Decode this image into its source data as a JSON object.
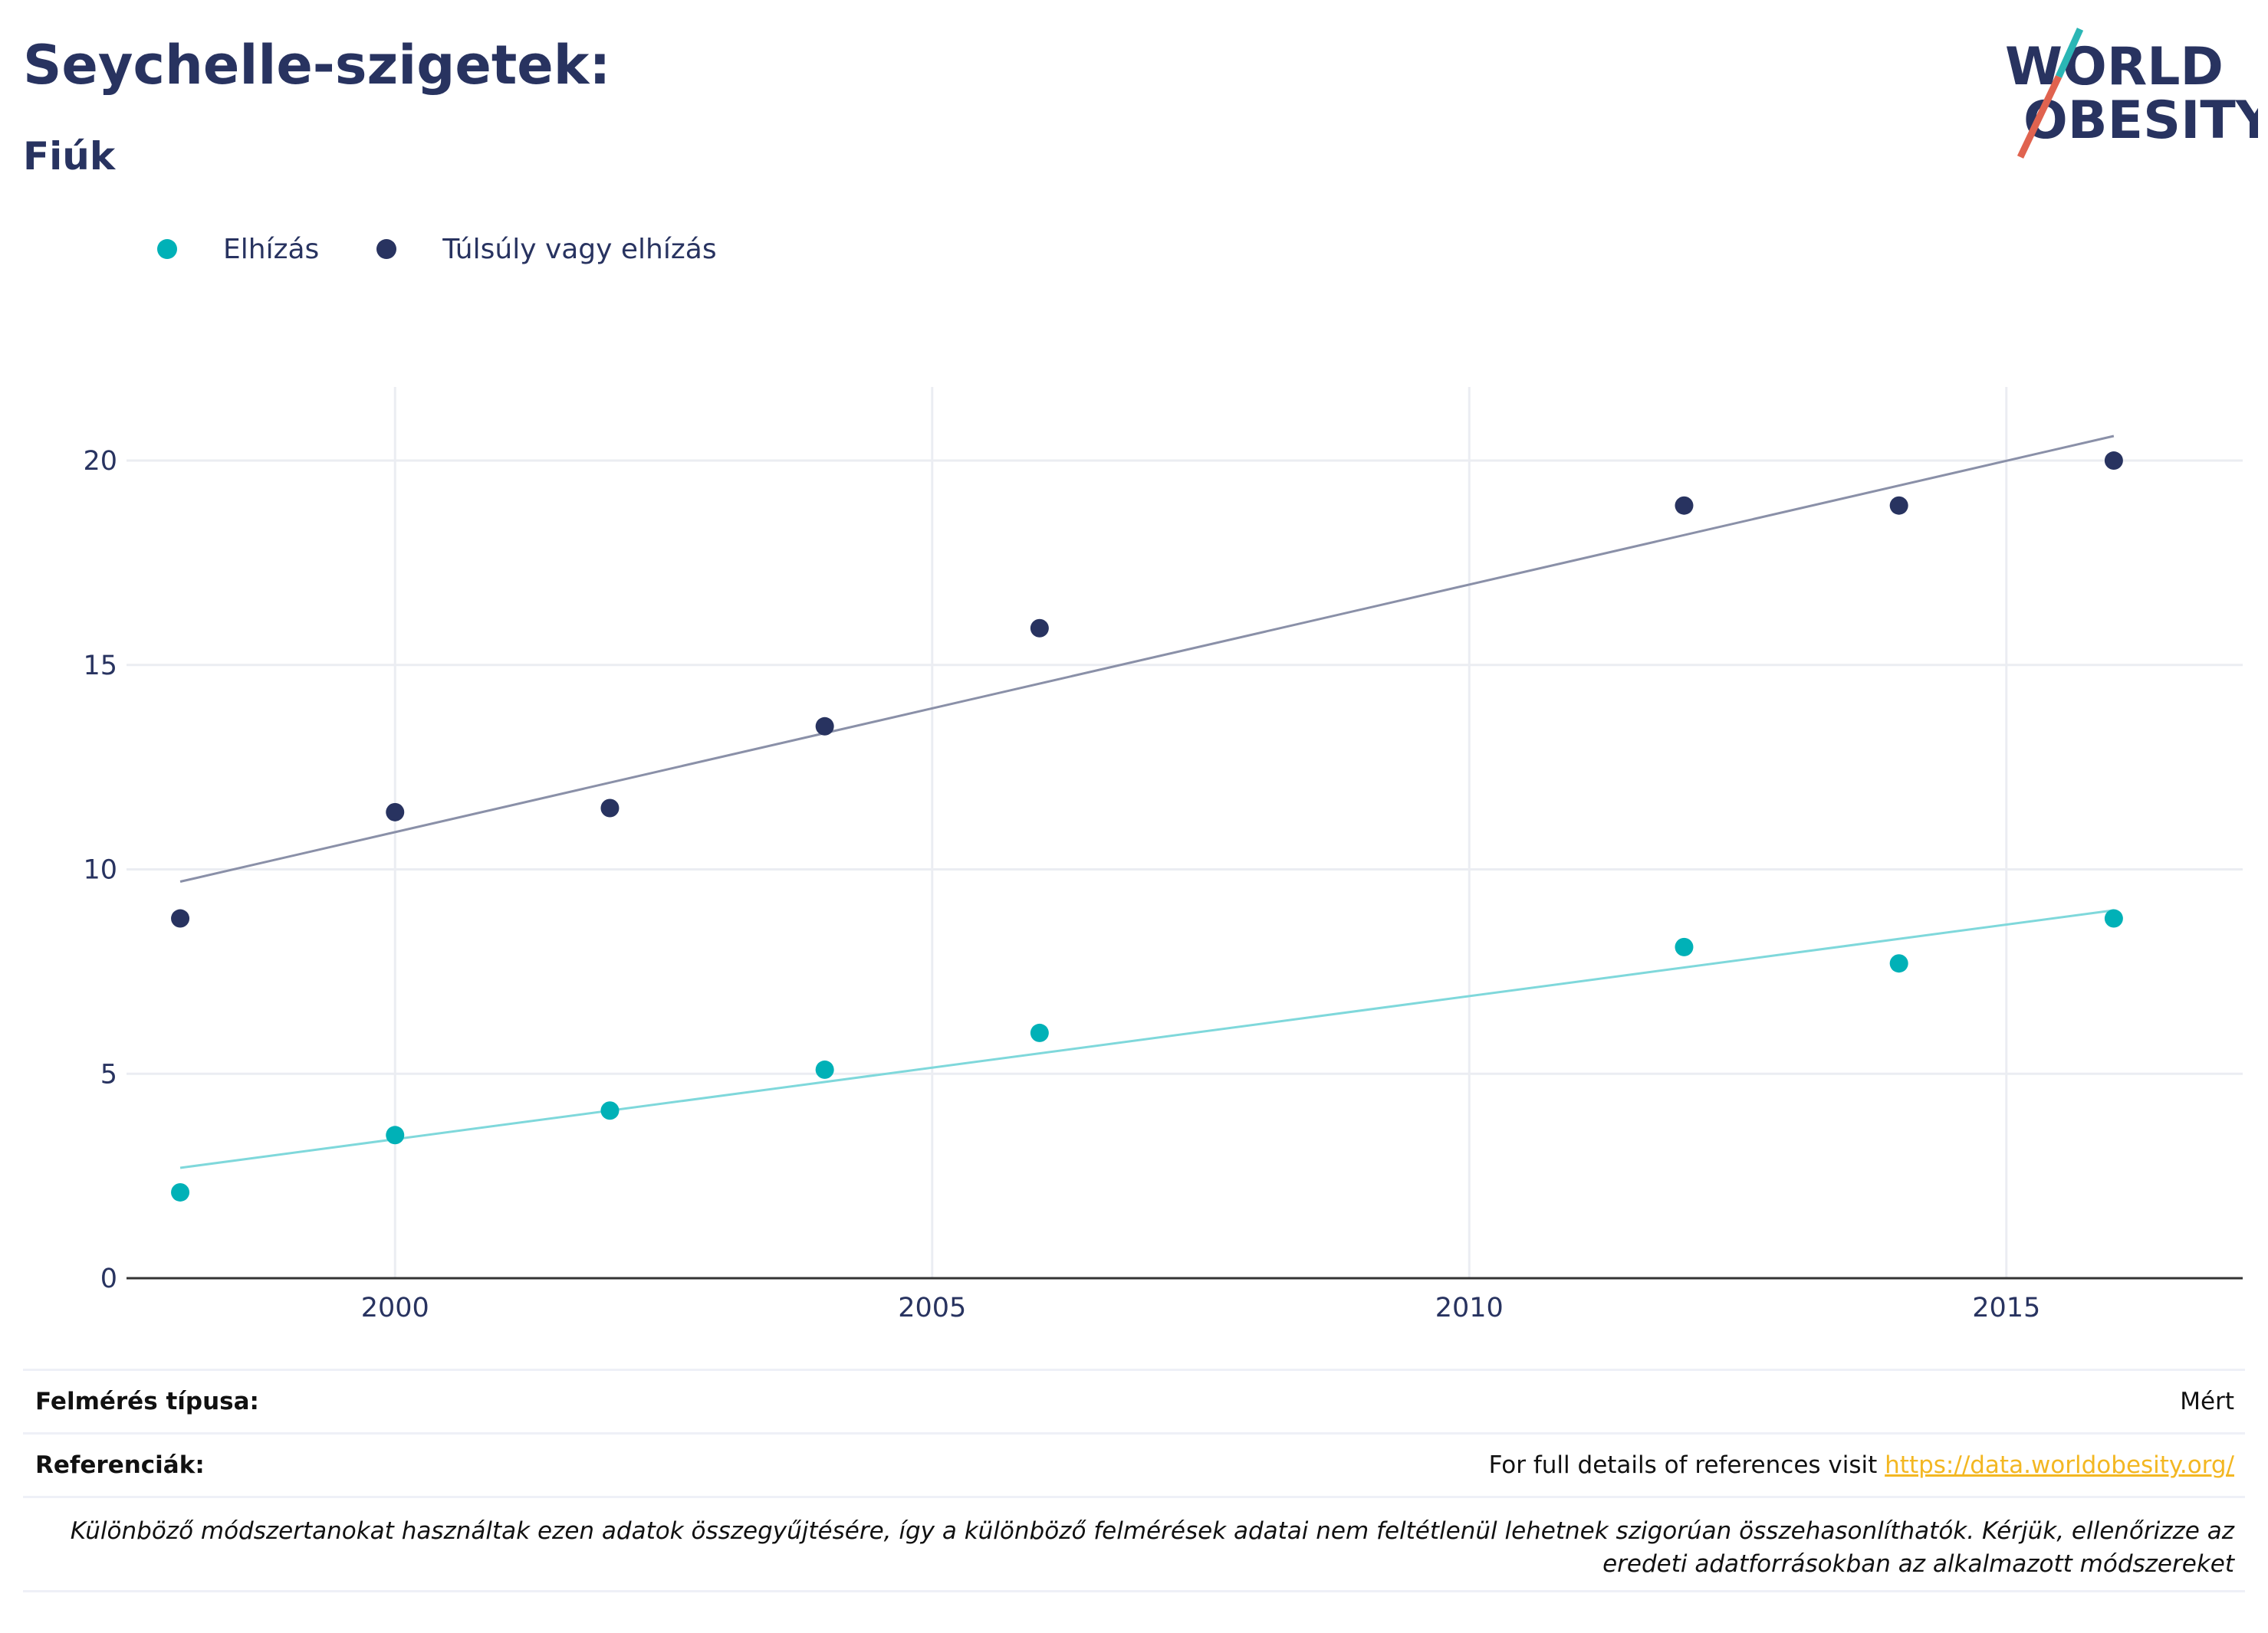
{
  "header": {
    "title": "Seychelle-szigetek:",
    "subtitle": "Fiúk"
  },
  "logo": {
    "line1": "WORLD",
    "line2": "OBESITY",
    "colors": {
      "text": "#283360",
      "teal": "#2ab6b5",
      "coral": "#e0634f"
    }
  },
  "legend": [
    {
      "label": "Elhízás",
      "color": "#00b1b7"
    },
    {
      "label": "Túlsúly vagy elhízás",
      "color": "#283360"
    }
  ],
  "chart_data": {
    "type": "scatter",
    "title": "",
    "xlabel": "",
    "ylabel": "",
    "xlim": [
      1997.5,
      2017.2
    ],
    "ylim": [
      0,
      21.8
    ],
    "x_ticks": [
      2000,
      2005,
      2010,
      2015
    ],
    "y_ticks": [
      0,
      5,
      10,
      15,
      20
    ],
    "grid": true,
    "legend_position": "top-left",
    "series": [
      {
        "name": "Elhízás",
        "color": "#00b1b7",
        "trend_color": "#7fd8db",
        "points": [
          {
            "x": 1998,
            "y": 2.1
          },
          {
            "x": 2000,
            "y": 3.5
          },
          {
            "x": 2002,
            "y": 4.1
          },
          {
            "x": 2004,
            "y": 5.1
          },
          {
            "x": 2006,
            "y": 6.0
          },
          {
            "x": 2012,
            "y": 8.1
          },
          {
            "x": 2014,
            "y": 7.7
          },
          {
            "x": 2016,
            "y": 8.8
          }
        ],
        "trendline": [
          {
            "x": 1998,
            "y": 2.7
          },
          {
            "x": 2016,
            "y": 9.0
          }
        ]
      },
      {
        "name": "Túlsúly vagy elhízás",
        "color": "#283360",
        "trend_color": "#8a90a8",
        "points": [
          {
            "x": 1998,
            "y": 8.8
          },
          {
            "x": 2000,
            "y": 11.4
          },
          {
            "x": 2002,
            "y": 11.5
          },
          {
            "x": 2004,
            "y": 13.5
          },
          {
            "x": 2006,
            "y": 15.9
          },
          {
            "x": 2012,
            "y": 18.9
          },
          {
            "x": 2014,
            "y": 18.9
          },
          {
            "x": 2016,
            "y": 20.0
          }
        ],
        "trendline": [
          {
            "x": 1998,
            "y": 9.7
          },
          {
            "x": 2016,
            "y": 20.6
          }
        ]
      }
    ]
  },
  "footer": {
    "survey_type_label": "Felmérés típusa:",
    "survey_type_value": "Mért",
    "references_label": "Referenciák:",
    "references_text": "For full details of references visit ",
    "references_link": "https://data.worldobesity.org/",
    "note_line1": "Különböző módszertanokat használtak ezen adatok összegyűjtésére, így a különböző felmérések adatai nem feltétlenül lehetnek szigorúan összehasonlíthatók. Kérjük, ellenőrizze az",
    "note_line2": "eredeti adatforrásokban az alkalmazott módszereket"
  }
}
